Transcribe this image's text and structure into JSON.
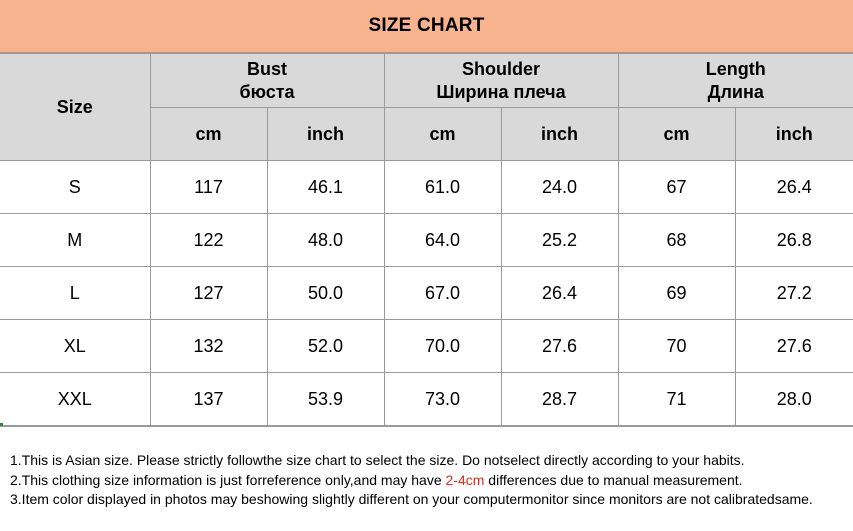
{
  "title": "SIZE CHART",
  "header": {
    "size": "Size",
    "groups": [
      {
        "en": "Bust",
        "ru": "бюста",
        "units": [
          "cm",
          "inch"
        ]
      },
      {
        "en": "Shoulder",
        "ru": "Ширина плеча",
        "units": [
          "cm",
          "inch"
        ]
      },
      {
        "en": "Length",
        "ru": "Длина",
        "units": [
          "cm",
          "inch"
        ]
      }
    ]
  },
  "rows": [
    {
      "size": "S",
      "values": [
        "117",
        "46.1",
        "61.0",
        "24.0",
        "67",
        "26.4"
      ]
    },
    {
      "size": "M",
      "values": [
        "122",
        "48.0",
        "64.0",
        "25.2",
        "68",
        "26.8"
      ]
    },
    {
      "size": "L",
      "values": [
        "127",
        "50.0",
        "67.0",
        "26.4",
        "69",
        "27.2"
      ]
    },
    {
      "size": "XL",
      "values": [
        "132",
        "52.0",
        "70.0",
        "27.6",
        "70",
        "27.6"
      ]
    },
    {
      "size": "XXL",
      "values": [
        "137",
        "53.9",
        "73.0",
        "28.7",
        "71",
        "28.0"
      ]
    }
  ],
  "notes": {
    "line1": "1.This is Asian size. Please strictly followthe size chart to select the size. Do notselect directly according to your habits.",
    "line2_pre": "2.This clothing size information is just forreference only,and may have ",
    "line2_highlight": "2-4cm",
    "line2_post": " differences due to manual measurement.",
    "line3": "3.Item color displayed in photos may beshowing slightly different on your computermonitor since monitors are not calibratedsame."
  },
  "colors": {
    "title_bg": "#f6b38d",
    "header_bg": "#d9d9d9",
    "highlight": "#e12b1f",
    "grid": "#9a9a9a"
  }
}
